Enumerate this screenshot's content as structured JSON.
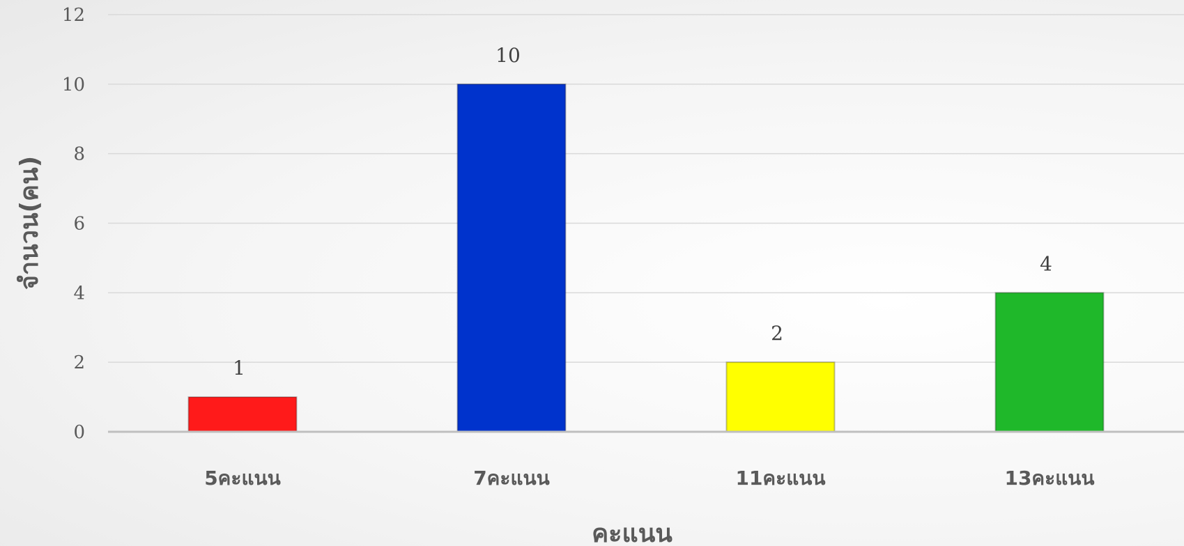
{
  "chart_data": {
    "type": "bar",
    "categories": [
      "5คะแนน",
      "7คะแนน",
      "11คะแนน",
      "13คะแนน"
    ],
    "values": [
      1,
      10,
      2,
      4
    ],
    "colors": [
      "#ff1a1a",
      "#0033cc",
      "#ffff00",
      "#1fb82a"
    ],
    "xlabel": "คะแนน",
    "ylabel": "จำนวน(คน)",
    "ylim": [
      0,
      12
    ],
    "yticks": [
      0,
      2,
      4,
      6,
      8,
      10,
      12
    ],
    "grid": true,
    "legend": "none"
  }
}
